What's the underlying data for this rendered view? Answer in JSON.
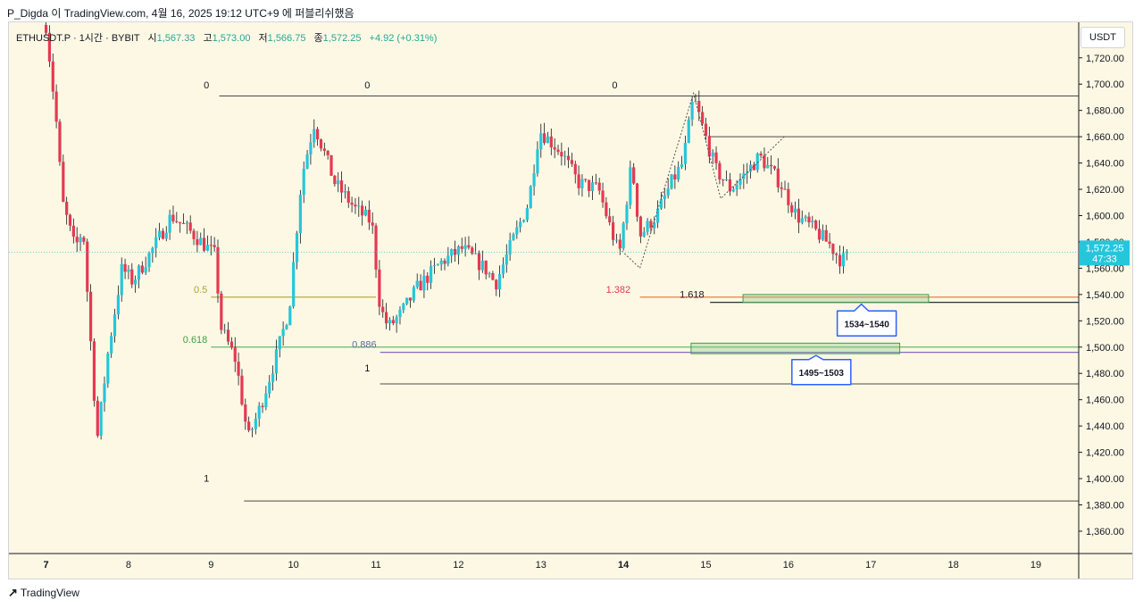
{
  "header": {
    "text": "P_Digda 이 TradingView.com, 4월 16, 2025 19:12 UTC+9 에 퍼블리쉬했음"
  },
  "legend": {
    "symbol": "ETHUSDT.P · 1시간 · BYBIT",
    "open_label": "시",
    "open": "1,567.33",
    "high_label": "고",
    "high": "1,573.00",
    "low_label": "저",
    "low": "1,566.75",
    "close_label": "종",
    "close": "1,572.25",
    "change": "+4.92 (+0.31%)"
  },
  "currency": "USDT",
  "footer": {
    "brand": "TradingView"
  },
  "colors": {
    "up": "#26c6da",
    "down": "#e53950",
    "bg": "#fdf8e4"
  },
  "chart_data": {
    "type": "candlestick",
    "title": "ETHUSDT.P · 1시간 · BYBIT",
    "ylim": [
      1343,
      1747
    ],
    "y_ticks": [
      1720,
      1700,
      1680,
      1660,
      1640,
      1620,
      1600,
      1580,
      1560,
      1540,
      1520,
      1500,
      1480,
      1460,
      1440,
      1420,
      1400,
      1380,
      1360
    ],
    "y_tick_labels": [
      "1,720.00",
      "1,700.00",
      "1,680.00",
      "1,660.00",
      "1,640.00",
      "1,620.00",
      "1,600.00",
      "1,580.00",
      "1,560.00",
      "1,540.00",
      "1,520.00",
      "1,500.00",
      "1,480.00",
      "1,460.00",
      "1,440.00",
      "1,420.00",
      "1,400.00",
      "1,380.00",
      "1,360.00"
    ],
    "x_range": [
      6.55,
      19.52
    ],
    "x_ticks": [
      7,
      8,
      9,
      10,
      11,
      12,
      13,
      14,
      15,
      16,
      17,
      18,
      19
    ],
    "x_tick_labels": [
      "7",
      "8",
      "9",
      "10",
      "11",
      "12",
      "13",
      "14",
      "15",
      "16",
      "17",
      "18",
      "19"
    ],
    "bold_x_ticks": [
      "7",
      "14"
    ],
    "last_price": {
      "value": 1572.25,
      "label": "1,572.25",
      "countdown": "47:33"
    },
    "price_path": [
      [
        7.0,
        1745
      ],
      [
        7.12,
        1675
      ],
      [
        7.2,
        1610
      ],
      [
        7.35,
        1575
      ],
      [
        7.45,
        1590
      ],
      [
        7.62,
        1430
      ],
      [
        7.75,
        1495
      ],
      [
        7.92,
        1560
      ],
      [
        8.05,
        1550
      ],
      [
        8.3,
        1575
      ],
      [
        8.52,
        1600
      ],
      [
        8.8,
        1585
      ],
      [
        9.05,
        1570
      ],
      [
        9.12,
        1515
      ],
      [
        9.3,
        1490
      ],
      [
        9.45,
        1430
      ],
      [
        9.6,
        1455
      ],
      [
        9.8,
        1495
      ],
      [
        9.95,
        1530
      ],
      [
        10.1,
        1630
      ],
      [
        10.25,
        1670
      ],
      [
        10.5,
        1625
      ],
      [
        10.75,
        1605
      ],
      [
        10.95,
        1595
      ],
      [
        11.05,
        1530
      ],
      [
        11.15,
        1515
      ],
      [
        11.3,
        1525
      ],
      [
        11.5,
        1545
      ],
      [
        11.8,
        1565
      ],
      [
        12.05,
        1575
      ],
      [
        12.35,
        1558
      ],
      [
        12.45,
        1548
      ],
      [
        12.62,
        1575
      ],
      [
        12.85,
        1610
      ],
      [
        12.98,
        1665
      ],
      [
        13.25,
        1648
      ],
      [
        13.45,
        1625
      ],
      [
        13.7,
        1620
      ],
      [
        13.82,
        1595
      ],
      [
        13.95,
        1570
      ],
      [
        14.1,
        1640
      ],
      [
        14.2,
        1585
      ],
      [
        14.4,
        1600
      ],
      [
        14.58,
        1625
      ],
      [
        14.72,
        1640
      ],
      [
        14.85,
        1690
      ],
      [
        15.02,
        1655
      ],
      [
        15.12,
        1635
      ],
      [
        15.3,
        1620
      ],
      [
        15.45,
        1630
      ],
      [
        15.65,
        1645
      ],
      [
        15.9,
        1625
      ],
      [
        16.1,
        1600
      ],
      [
        16.3,
        1590
      ],
      [
        16.5,
        1578
      ],
      [
        16.65,
        1565
      ],
      [
        16.72,
        1572.25
      ]
    ],
    "levels": [
      {
        "label": "1.382",
        "value": 1538,
        "x_start": 14.2,
        "x_end": 19.52,
        "color": "#f06a3c",
        "label_color": "#e53950"
      },
      {
        "label": "1.618",
        "value": 1534,
        "x_start": 15.05,
        "x_end": 19.52,
        "color": "#131722",
        "label_color": "#131722"
      },
      {
        "label": "0.5",
        "value": 1538,
        "x_start": 9.0,
        "x_end": 11.0,
        "color": "#b0a040",
        "label_color": "#b0a040"
      },
      {
        "label": "0.618",
        "value": 1500,
        "x_start": 9.0,
        "x_end": 19.52,
        "color": "#66bb6a",
        "label_color": "#43a047"
      },
      {
        "label": "0.886",
        "value": 1496,
        "x_start": 11.05,
        "x_end": 19.52,
        "color": "#7e57c2",
        "label_color": "#5c6b9c"
      }
    ],
    "fib_top_labels": [
      {
        "label": "0",
        "x": 9.0,
        "value": 1700
      },
      {
        "label": "0",
        "x": 10.95,
        "value": 1700
      },
      {
        "label": "0",
        "x": 13.95,
        "value": 1700
      }
    ],
    "fib_bottom_labels": [
      {
        "label": "1",
        "x": 10.95,
        "value": 1485
      },
      {
        "label": "1",
        "x": 9.0,
        "value": 1401
      }
    ],
    "horizontal_lines": [
      {
        "value": 1691,
        "x_start": 9.1,
        "x_end": 19.52
      },
      {
        "value": 1660,
        "x_start": 15.05,
        "x_end": 19.52
      },
      {
        "value": 1472,
        "x_start": 11.05,
        "x_end": 19.52
      },
      {
        "value": 1383,
        "x_start": 9.4,
        "x_end": 19.52
      }
    ],
    "zones": [
      {
        "label": "1534~1540",
        "low": 1534,
        "high": 1540,
        "x_start": 15.45,
        "x_end": 17.7
      },
      {
        "label": "1495~1503",
        "low": 1495,
        "high": 1503,
        "x_start": 14.82,
        "x_end": 17.35
      }
    ],
    "callouts": [
      {
        "label": "1534~1540",
        "x": 16.95,
        "value": 1518
      },
      {
        "label": "1495~1503",
        "x": 16.4,
        "value": 1481
      }
    ],
    "zigzag": [
      [
        13.95,
        1575
      ],
      [
        14.2,
        1560
      ],
      [
        14.85,
        1693
      ],
      [
        15.18,
        1613
      ],
      [
        15.95,
        1660
      ]
    ]
  }
}
